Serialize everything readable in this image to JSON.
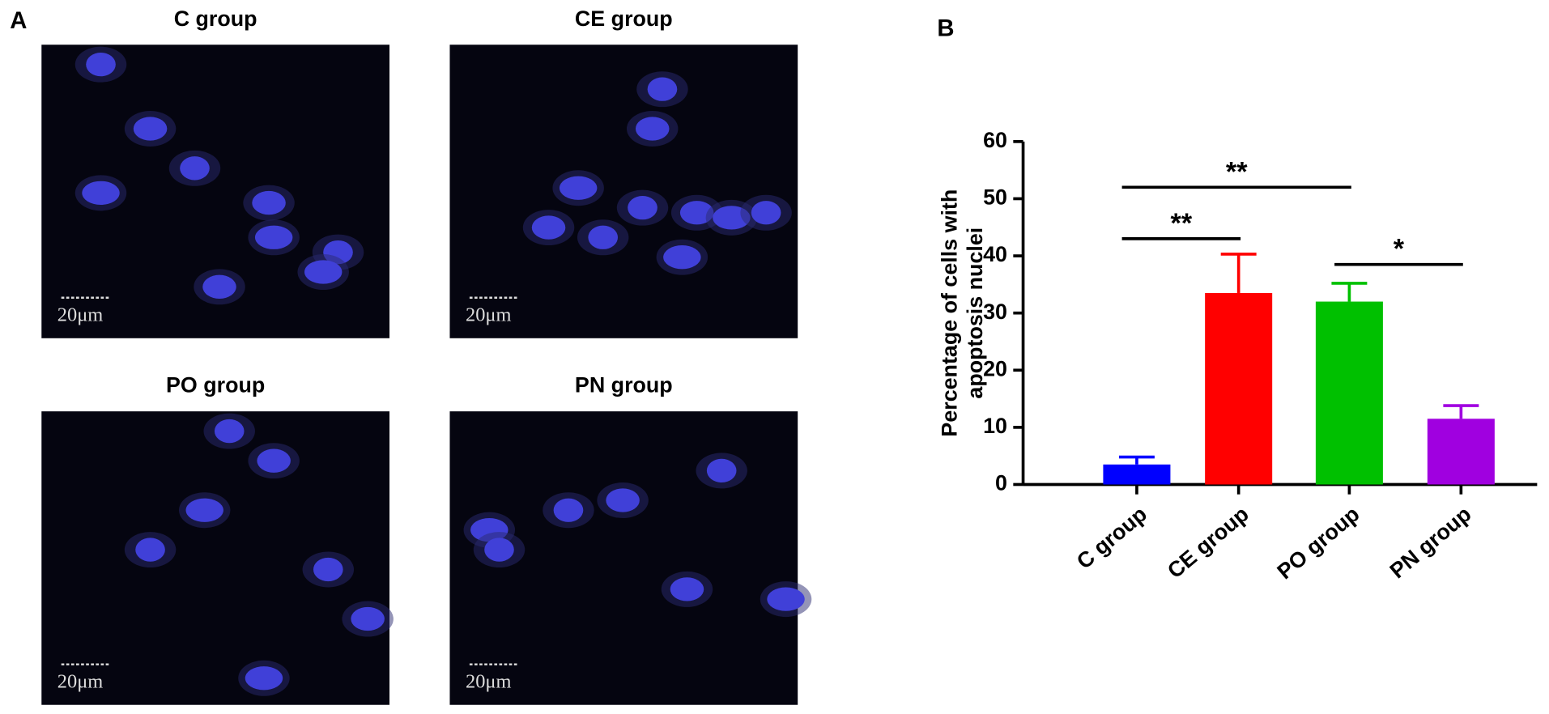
{
  "panel_a": {
    "label": "A",
    "images": [
      {
        "title": "C group",
        "scale_bar": "20μm"
      },
      {
        "title": "CE group",
        "scale_bar": "20μm"
      },
      {
        "title": "PO group",
        "scale_bar": "20μm"
      },
      {
        "title": "PN group",
        "scale_bar": "20μm"
      }
    ]
  },
  "chart_data": {
    "type": "bar",
    "panel_label": "B",
    "ylabel": [
      "Percentage of cells with",
      "apoptosis nuclei"
    ],
    "categories": [
      "C group",
      "CE group",
      "PO group",
      "PN group"
    ],
    "values": [
      3.5,
      33.5,
      32,
      11.5
    ],
    "errors": [
      1.3,
      6.8,
      3.2,
      2.3
    ],
    "colors": [
      "#0000ff",
      "#ff0000",
      "#00c000",
      "#a000e0"
    ],
    "ylim": [
      0,
      60
    ],
    "yticks": [
      0,
      10,
      20,
      30,
      40,
      50,
      60
    ],
    "annotations": [
      {
        "label": "**",
        "from": 0,
        "to": 1,
        "y": 43
      },
      {
        "label": "**",
        "from": 0,
        "to": 2,
        "y": 52
      },
      {
        "label": "*",
        "from": 2,
        "to": 3,
        "y": 38.5
      }
    ]
  }
}
